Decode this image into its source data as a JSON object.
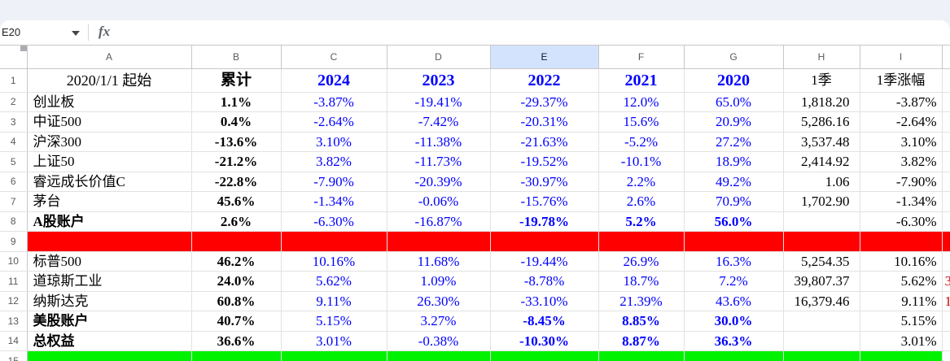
{
  "chrome": {
    "name_box": "E20",
    "fx_label": "fx"
  },
  "colors": {
    "blue_text": "#0000ff",
    "selected_header_bg": "#d3e3fd",
    "red_row": "#ff0000",
    "green_row": "#00f200",
    "red_partial_text": "#cc0000"
  },
  "sheet": {
    "selected_cell": "E20",
    "col_headers": [
      "A",
      "B",
      "C",
      "D",
      "E",
      "F",
      "G",
      "H",
      "I"
    ],
    "selected_col_header": "E",
    "rows": [
      {
        "n": "1",
        "cells": {
          "A": "2020/1/1 起始",
          "B": {
            "v": "累计",
            "b": 1
          },
          "C": "2024",
          "D": "2023",
          "E": "2022",
          "F": "2021",
          "G": "2020",
          "H": "1季",
          "I": "1季涨幅"
        }
      },
      {
        "n": "2",
        "cells": {
          "A": "创业板",
          "B": "1.1%",
          "C": "-3.87%",
          "D": "-19.41%",
          "E": "-29.37%",
          "F": "12.0%",
          "G": "65.0%",
          "H": "1,818.20",
          "I": "-3.87%"
        }
      },
      {
        "n": "3",
        "cells": {
          "A": "中证500",
          "B": "0.4%",
          "C": "-2.64%",
          "D": "-7.42%",
          "E": "-20.31%",
          "F": "15.6%",
          "G": "20.9%",
          "H": "5,286.16",
          "I": "-2.64%"
        }
      },
      {
        "n": "4",
        "cells": {
          "A": "沪深300",
          "B": "-13.6%",
          "C": "3.10%",
          "D": "-11.38%",
          "E": "-21.63%",
          "F": "-5.2%",
          "G": "27.2%",
          "H": "3,537.48",
          "I": "3.10%"
        }
      },
      {
        "n": "5",
        "cells": {
          "A": "上证50",
          "B": "-21.2%",
          "C": "3.82%",
          "D": "-11.73%",
          "E": "-19.52%",
          "F": "-10.1%",
          "G": "18.9%",
          "H": "2,414.92",
          "I": "3.82%"
        }
      },
      {
        "n": "6",
        "cells": {
          "A": "睿远成长价值C",
          "B": "-22.8%",
          "C": "-7.90%",
          "D": "-20.39%",
          "E": "-30.97%",
          "F": "2.2%",
          "G": "49.2%",
          "H": "1.06",
          "I": "-7.90%"
        }
      },
      {
        "n": "7",
        "cells": {
          "A": "茅台",
          "B": "45.6%",
          "C": "-1.34%",
          "D": "-0.06%",
          "E": "-15.76%",
          "F": "2.6%",
          "G": "70.9%",
          "H": "1,702.90",
          "I": "-1.34%"
        }
      },
      {
        "n": "8",
        "cells": {
          "A": {
            "v": "A股账户",
            "b": 1
          },
          "B": "2.6%",
          "C": "-6.30%",
          "D": "-16.87%",
          "E": {
            "v": "-19.78%",
            "b": 1
          },
          "F": {
            "v": "5.2%",
            "b": 1
          },
          "G": {
            "v": "56.0%",
            "b": 1
          },
          "I": "-6.30%"
        }
      },
      {
        "n": "9",
        "bg": "#ff0000",
        "bg_to": "J",
        "cells": {}
      },
      {
        "n": "10",
        "cells": {
          "A": "标普500",
          "B": "46.2%",
          "C": "10.16%",
          "D": "11.68%",
          "E": "-19.44%",
          "F": "26.9%",
          "G": "16.3%",
          "H": "5,254.35",
          "I": "10.16%"
        }
      },
      {
        "n": "11",
        "cells": {
          "A": "道琼斯工业",
          "B": "24.0%",
          "C": "5.62%",
          "D": "1.09%",
          "E": "-8.78%",
          "F": "18.7%",
          "G": "7.2%",
          "H": "39,807.37",
          "I": "5.62%",
          "J": "3"
        }
      },
      {
        "n": "12",
        "cells": {
          "A": "纳斯达克",
          "B": "60.8%",
          "C": "9.11%",
          "D": "26.30%",
          "E": "-33.10%",
          "F": "21.39%",
          "G": "43.6%",
          "H": "16,379.46",
          "I": "9.11%",
          "J": "1"
        }
      },
      {
        "n": "13",
        "cells": {
          "A": {
            "v": "美股账户",
            "b": 1
          },
          "B": "40.7%",
          "C": "5.15%",
          "D": "3.27%",
          "E": {
            "v": "-8.45%",
            "b": 1
          },
          "F": {
            "v": "8.85%",
            "b": 1
          },
          "G": {
            "v": "30.0%",
            "b": 1
          },
          "I": "5.15%"
        }
      },
      {
        "n": "14",
        "cells": {
          "A": {
            "v": "总权益",
            "b": 1
          },
          "B": "36.6%",
          "C": "3.01%",
          "D": "-0.38%",
          "E": {
            "v": "-10.30%",
            "b": 1
          },
          "F": {
            "v": "8.87%",
            "b": 1
          },
          "G": {
            "v": "36.3%",
            "b": 1
          },
          "I": "3.01%"
        }
      },
      {
        "n": "15",
        "bg": "#00f200",
        "bg_to": "I",
        "cells": {}
      }
    ]
  }
}
